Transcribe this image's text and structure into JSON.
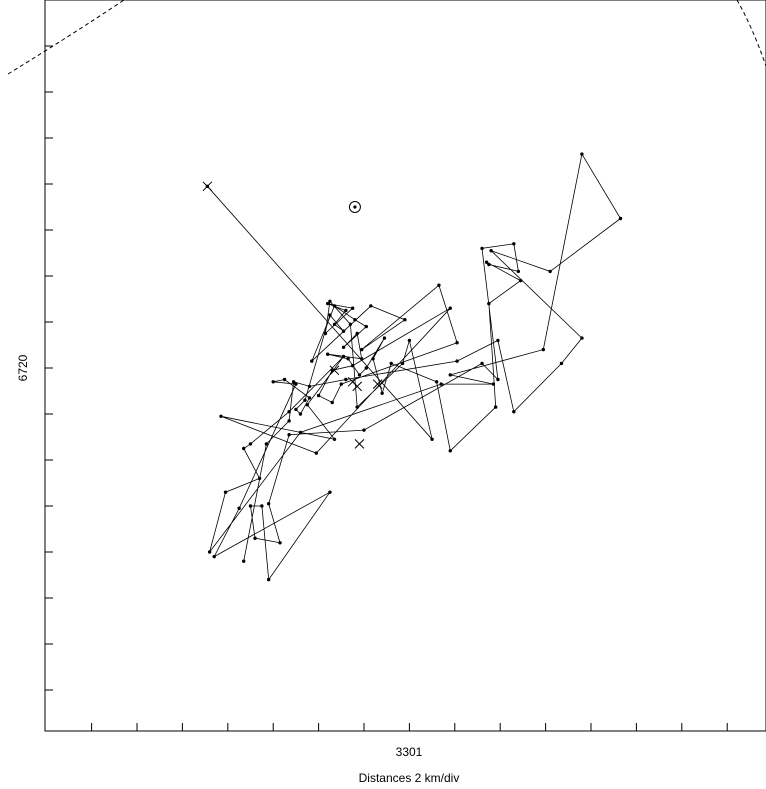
{
  "chart_data": {
    "type": "scatter",
    "title": "",
    "xlabel": "Distances 2 km/div",
    "ylabel": "",
    "x_center_label": "3301",
    "y_center_label": "6720",
    "x_tick_step_km": 2,
    "y_tick_step_km": 2,
    "xlim_km": [
      -16,
      16
    ],
    "ylim_km": [
      -16,
      16
    ],
    "grid": false,
    "legend": "none",
    "track": [
      [
        -6.9,
        7.9
      ],
      [
        3.0,
        -3.1
      ],
      [
        2.0,
        1.2
      ],
      [
        1.7,
        0.2
      ],
      [
        -0.3,
        -1.7
      ],
      [
        -0.6,
        1.9
      ],
      [
        -1.5,
        2.9
      ],
      [
        -1.7,
        1.5
      ],
      [
        -0.5,
        2.6
      ],
      [
        -1.6,
        2.8
      ],
      [
        -0.8,
        2.5
      ],
      [
        -1.3,
        1.9
      ],
      [
        -0.9,
        1.6
      ],
      [
        -1.5,
        2.3
      ],
      [
        -2.6,
        -1.4
      ],
      [
        -3.0,
        -1.8
      ],
      [
        -2.8,
        -2.0
      ],
      [
        -2.4,
        -1.3
      ],
      [
        -3.5,
        -0.5
      ],
      [
        -4.0,
        -0.6
      ],
      [
        -3.0,
        -0.7
      ],
      [
        -5.5,
        -6.1
      ],
      [
        -6.6,
        -8.2
      ],
      [
        -1.5,
        -5.4
      ],
      [
        -4.2,
        -9.2
      ],
      [
        -4.5,
        -6.0
      ],
      [
        -5.0,
        -6.0
      ],
      [
        -4.8,
        -7.4
      ],
      [
        -3.7,
        -7.6
      ],
      [
        -4.2,
        -5.9
      ],
      [
        -3.3,
        -2.9
      ],
      [
        0.0,
        -2.7
      ],
      [
        5.2,
        0.2
      ],
      [
        5.9,
        -0.5
      ],
      [
        5.2,
        5.2
      ],
      [
        6.6,
        5.4
      ],
      [
        6.8,
        4.2
      ],
      [
        5.5,
        4.5
      ],
      [
        5.4,
        4.6
      ],
      [
        6.9,
        3.8
      ],
      [
        5.5,
        2.8
      ],
      [
        5.8,
        -1.7
      ],
      [
        3.8,
        -3.6
      ],
      [
        3.2,
        -0.6
      ],
      [
        1.2,
        0.2
      ],
      [
        0.8,
        -1.1
      ],
      [
        0.4,
        0.4
      ],
      [
        0.9,
        1.3
      ],
      [
        0.1,
        0.0
      ],
      [
        -0.2,
        -0.3
      ],
      [
        -0.7,
        0.4
      ],
      [
        -1.6,
        0.6
      ],
      [
        -0.1,
        0.4
      ],
      [
        -0.3,
        1.5
      ],
      [
        -0.9,
        0.9
      ],
      [
        0.1,
        1.8
      ],
      [
        -0.4,
        2.1
      ],
      [
        -1.3,
        2.7
      ],
      [
        -2.3,
        0.3
      ],
      [
        0.3,
        2.7
      ],
      [
        1.8,
        2.1
      ],
      [
        -0.1,
        0.8
      ],
      [
        3.3,
        3.6
      ],
      [
        4.1,
        1.1
      ],
      [
        -1.0,
        -0.7
      ],
      [
        -1.4,
        -1.5
      ],
      [
        -2.0,
        -1.2
      ],
      [
        -1.4,
        -0.1
      ],
      [
        -0.5,
        0.1
      ],
      [
        3.8,
        2.6
      ],
      [
        -2.1,
        -3.7
      ],
      [
        -6.3,
        -2.1
      ],
      [
        -1.3,
        -3.1
      ],
      [
        -2.5,
        -1.6
      ],
      [
        -0.9,
        0.5
      ],
      [
        -3.3,
        -1.9
      ],
      [
        -5.0,
        -3.3
      ],
      [
        -5.3,
        -3.5
      ],
      [
        -4.6,
        -4.8
      ],
      [
        -6.1,
        -5.4
      ],
      [
        -6.8,
        -8.0
      ],
      [
        -2.8,
        -2.8
      ],
      [
        3.4,
        -0.7
      ],
      [
        5.7,
        -0.7
      ],
      [
        3.8,
        -0.3
      ],
      [
        7.9,
        0.8
      ],
      [
        9.6,
        9.3
      ],
      [
        11.3,
        6.5
      ],
      [
        8.2,
        4.2
      ],
      [
        5.6,
        5.1
      ],
      [
        9.6,
        1.3
      ],
      [
        8.7,
        0.2
      ],
      [
        6.6,
        -1.9
      ],
      [
        5.9,
        1.2
      ],
      [
        4.1,
        0.3
      ],
      [
        -0.8,
        -0.5
      ],
      [
        -2.4,
        -0.8
      ],
      [
        -3.1,
        -0.6
      ],
      [
        -3.3,
        -2.3
      ],
      [
        -4.3,
        -3.3
      ],
      [
        -5.3,
        -8.4
      ]
    ],
    "x_markers": [
      [
        -6.9,
        7.9
      ],
      [
        -1.3,
        -0.1
      ],
      [
        -0.5,
        -0.6
      ],
      [
        -0.3,
        -0.8
      ],
      [
        0.6,
        -0.7
      ],
      [
        -0.2,
        -3.3
      ]
    ],
    "circle_marker": [
      -0.4,
      7.0
    ]
  }
}
